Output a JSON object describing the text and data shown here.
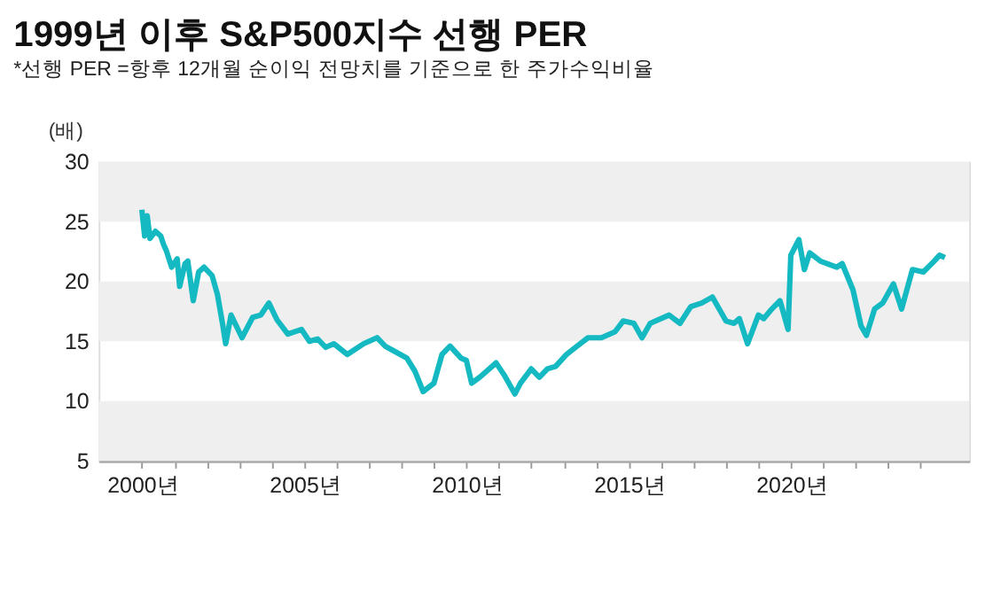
{
  "chart_data": {
    "type": "line",
    "title": "1999년 이후 S&P500지수 선행 PER",
    "subtitle": "*선행 PER =항후 12개월 순이익 전망치를 기준으로 한 주가수익비율",
    "ylabel": "(배)",
    "x": [
      "2000-01",
      "2000-02",
      "2000-03",
      "2000-04",
      "2000-06",
      "2000-08",
      "2000-09",
      "2000-10",
      "2000-12",
      "2001-02",
      "2001-03",
      "2001-05",
      "2001-06",
      "2001-08",
      "2001-10",
      "2001-12",
      "2002-03",
      "2002-05",
      "2002-07",
      "2002-08",
      "2002-10",
      "2003-02",
      "2003-06",
      "2003-09",
      "2003-12",
      "2004-03",
      "2004-07",
      "2004-12",
      "2005-03",
      "2005-06",
      "2005-09",
      "2005-12",
      "2006-05",
      "2006-11",
      "2007-04",
      "2007-07",
      "2007-11",
      "2008-03",
      "2008-06",
      "2008-09",
      "2009-01",
      "2009-04",
      "2009-07",
      "2009-11",
      "2010-01",
      "2010-03",
      "2010-06",
      "2010-12",
      "2011-03",
      "2011-07",
      "2011-09",
      "2012-01",
      "2012-04",
      "2012-07",
      "2012-10",
      "2013-02",
      "2013-06",
      "2013-10",
      "2014-03",
      "2014-08",
      "2014-11",
      "2015-03",
      "2015-06",
      "2015-09",
      "2016-04",
      "2016-08",
      "2016-12",
      "2017-04",
      "2017-08",
      "2018-01",
      "2018-04",
      "2018-06",
      "2018-09",
      "2019-01",
      "2019-03",
      "2019-06",
      "2019-09",
      "2019-12",
      "2020-01",
      "2020-04",
      "2020-06",
      "2020-08",
      "2020-12",
      "2021-06",
      "2021-08",
      "2021-12",
      "2022-03",
      "2022-05",
      "2022-08",
      "2022-11",
      "2023-03",
      "2023-06",
      "2023-10",
      "2024-02",
      "2024-06",
      "2024-08",
      "2024-10"
    ],
    "series": [
      {
        "color": "#14b9c1",
        "values": [
          26.0,
          23.8,
          25.5,
          23.6,
          24.2,
          23.8,
          23.1,
          22.6,
          21.2,
          21.9,
          19.6,
          21.5,
          21.7,
          18.4,
          20.8,
          21.2,
          20.5,
          18.9,
          16.3,
          14.8,
          17.2,
          15.3,
          17.0,
          17.2,
          18.2,
          16.8,
          15.6,
          16.0,
          15.0,
          15.2,
          14.5,
          14.8,
          13.9,
          14.8,
          15.3,
          14.6,
          14.1,
          13.6,
          12.5,
          10.8,
          11.5,
          13.9,
          14.6,
          13.6,
          13.4,
          11.5,
          12.0,
          13.2,
          12.2,
          10.6,
          11.5,
          12.7,
          12.0,
          12.7,
          12.9,
          13.9,
          14.6,
          15.3,
          15.3,
          15.8,
          16.7,
          16.5,
          15.3,
          16.5,
          17.2,
          16.5,
          17.9,
          18.2,
          18.7,
          16.7,
          16.5,
          16.9,
          14.8,
          17.2,
          16.9,
          17.7,
          18.4,
          16.0,
          22.2,
          23.5,
          21.0,
          22.4,
          21.7,
          21.2,
          21.5,
          19.3,
          16.3,
          15.5,
          17.7,
          18.2,
          19.8,
          17.7,
          21.0,
          20.8,
          21.7,
          22.2,
          22.0
        ]
      }
    ],
    "xlim": [
      "1998-09",
      "2025-07"
    ],
    "xticks": [
      {
        "value": "2000",
        "label": "2000년"
      },
      {
        "value": "2001",
        "label": null
      },
      {
        "value": "2002",
        "label": null
      },
      {
        "value": "2003",
        "label": null
      },
      {
        "value": "2004",
        "label": null
      },
      {
        "value": "2005",
        "label": "2005년"
      },
      {
        "value": "2006",
        "label": null
      },
      {
        "value": "2007",
        "label": null
      },
      {
        "value": "2008",
        "label": null
      },
      {
        "value": "2009",
        "label": null
      },
      {
        "value": "2010",
        "label": "2010년"
      },
      {
        "value": "2011",
        "label": null
      },
      {
        "value": "2012",
        "label": null
      },
      {
        "value": "2013",
        "label": null
      },
      {
        "value": "2014",
        "label": null
      },
      {
        "value": "2015",
        "label": "2015년"
      },
      {
        "value": "2016",
        "label": null
      },
      {
        "value": "2017",
        "label": null
      },
      {
        "value": "2018",
        "label": null
      },
      {
        "value": "2019",
        "label": null
      },
      {
        "value": "2020",
        "label": "2020년"
      },
      {
        "value": "2021",
        "label": null
      },
      {
        "value": "2022",
        "label": null
      },
      {
        "value": "2023",
        "label": null
      },
      {
        "value": "2024",
        "label": null
      }
    ],
    "ylim": [
      5,
      30
    ],
    "yticks": [
      5,
      10,
      15,
      20,
      25,
      30
    ],
    "bands": [
      {
        "axis": "y",
        "from": 25,
        "to": 30,
        "color": "#efefef"
      },
      {
        "axis": "y",
        "from": 15,
        "to": 20,
        "color": "#efefef"
      },
      {
        "axis": "y",
        "from": 5,
        "to": 10,
        "color": "#efefef"
      }
    ],
    "grid": false,
    "legend": false,
    "marker": "none",
    "line_style": "solid"
  }
}
